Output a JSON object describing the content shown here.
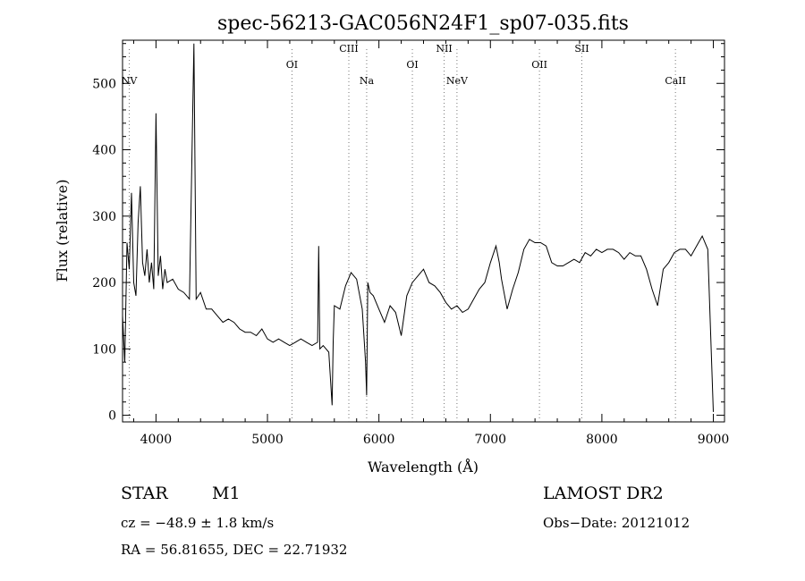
{
  "chart_data": {
    "type": "line",
    "title": "spec-56213-GAC056N24F1_sp07-035.fits",
    "xlabel": "Wavelength (Å)",
    "ylabel": "Flux (relative)",
    "xlim": [
      3700,
      9100
    ],
    "ylim": [
      -10,
      565
    ],
    "x_ticks": [
      4000,
      5000,
      6000,
      7000,
      8000,
      9000
    ],
    "y_ticks": [
      0,
      100,
      200,
      300,
      400,
      500
    ],
    "grid": false,
    "series": [
      {
        "x": [
          3700,
          3720,
          3740,
          3760,
          3780,
          3800,
          3820,
          3840,
          3860,
          3880,
          3900,
          3920,
          3940,
          3960,
          3980,
          4000,
          4020,
          4040,
          4060,
          4080,
          4100,
          4150,
          4200,
          4250,
          4300,
          4340,
          4360,
          4400,
          4450,
          4500,
          4550,
          4600,
          4650,
          4700,
          4750,
          4800,
          4850,
          4900,
          4950,
          5000,
          5050,
          5100,
          5150,
          5200,
          5250,
          5300,
          5350,
          5400,
          5450,
          5460,
          5470,
          5500,
          5550,
          5580,
          5590,
          5600,
          5650,
          5700,
          5750,
          5800,
          5850,
          5880,
          5890,
          5900,
          5920,
          5950,
          6000,
          6050,
          6100,
          6150,
          6200,
          6250,
          6300,
          6350,
          6400,
          6450,
          6500,
          6550,
          6600,
          6650,
          6700,
          6750,
          6800,
          6850,
          6900,
          6950,
          7000,
          7050,
          7080,
          7100,
          7150,
          7200,
          7250,
          7300,
          7350,
          7400,
          7450,
          7500,
          7550,
          7600,
          7650,
          7700,
          7750,
          7800,
          7850,
          7900,
          7950,
          8000,
          8050,
          8100,
          8150,
          8200,
          8250,
          8300,
          8350,
          8400,
          8450,
          8500,
          8550,
          8600,
          8650,
          8700,
          8750,
          8800,
          8850,
          8900,
          8950,
          9000
        ],
        "values": [
          150,
          80,
          260,
          220,
          335,
          200,
          180,
          290,
          345,
          230,
          210,
          250,
          200,
          230,
          190,
          455,
          210,
          240,
          190,
          220,
          200,
          205,
          190,
          185,
          175,
          560,
          175,
          185,
          160,
          160,
          150,
          140,
          145,
          140,
          130,
          125,
          125,
          120,
          130,
          115,
          110,
          115,
          110,
          105,
          110,
          115,
          110,
          105,
          110,
          255,
          100,
          105,
          95,
          15,
          110,
          165,
          160,
          195,
          215,
          205,
          160,
          80,
          30,
          200,
          185,
          180,
          160,
          140,
          165,
          155,
          120,
          180,
          200,
          210,
          220,
          200,
          195,
          185,
          170,
          160,
          165,
          155,
          160,
          175,
          190,
          200,
          230,
          255,
          230,
          205,
          160,
          190,
          215,
          250,
          265,
          260,
          260,
          255,
          230,
          225,
          225,
          230,
          235,
          230,
          245,
          240,
          250,
          245,
          250,
          250,
          245,
          235,
          245,
          240,
          240,
          220,
          190,
          165,
          220,
          230,
          245,
          250,
          250,
          240,
          255,
          270,
          250,
          5
        ]
      }
    ],
    "line_labels": [
      {
        "text": "NV",
        "x": 3760
      },
      {
        "text": "OI",
        "x": 5220
      },
      {
        "text": "CIII",
        "x": 5730
      },
      {
        "text": "Na",
        "x": 5890
      },
      {
        "text": "OI",
        "x": 6300
      },
      {
        "text": "NII",
        "x": 6585
      },
      {
        "text": "NeV",
        "x": 6700
      },
      {
        "text": "OII",
        "x": 7440
      },
      {
        "text": "SII",
        "x": 7820
      },
      {
        "text": "CaII",
        "x": 8660
      }
    ]
  },
  "info": {
    "object_class": "STAR",
    "subclass": "M1",
    "survey": "LAMOST DR2",
    "cz": "cz = −48.9 ± 1.8 km/s",
    "obs_date": "Obs−Date: 20121012",
    "coords": "RA =  56.81655, DEC =  22.71932"
  }
}
